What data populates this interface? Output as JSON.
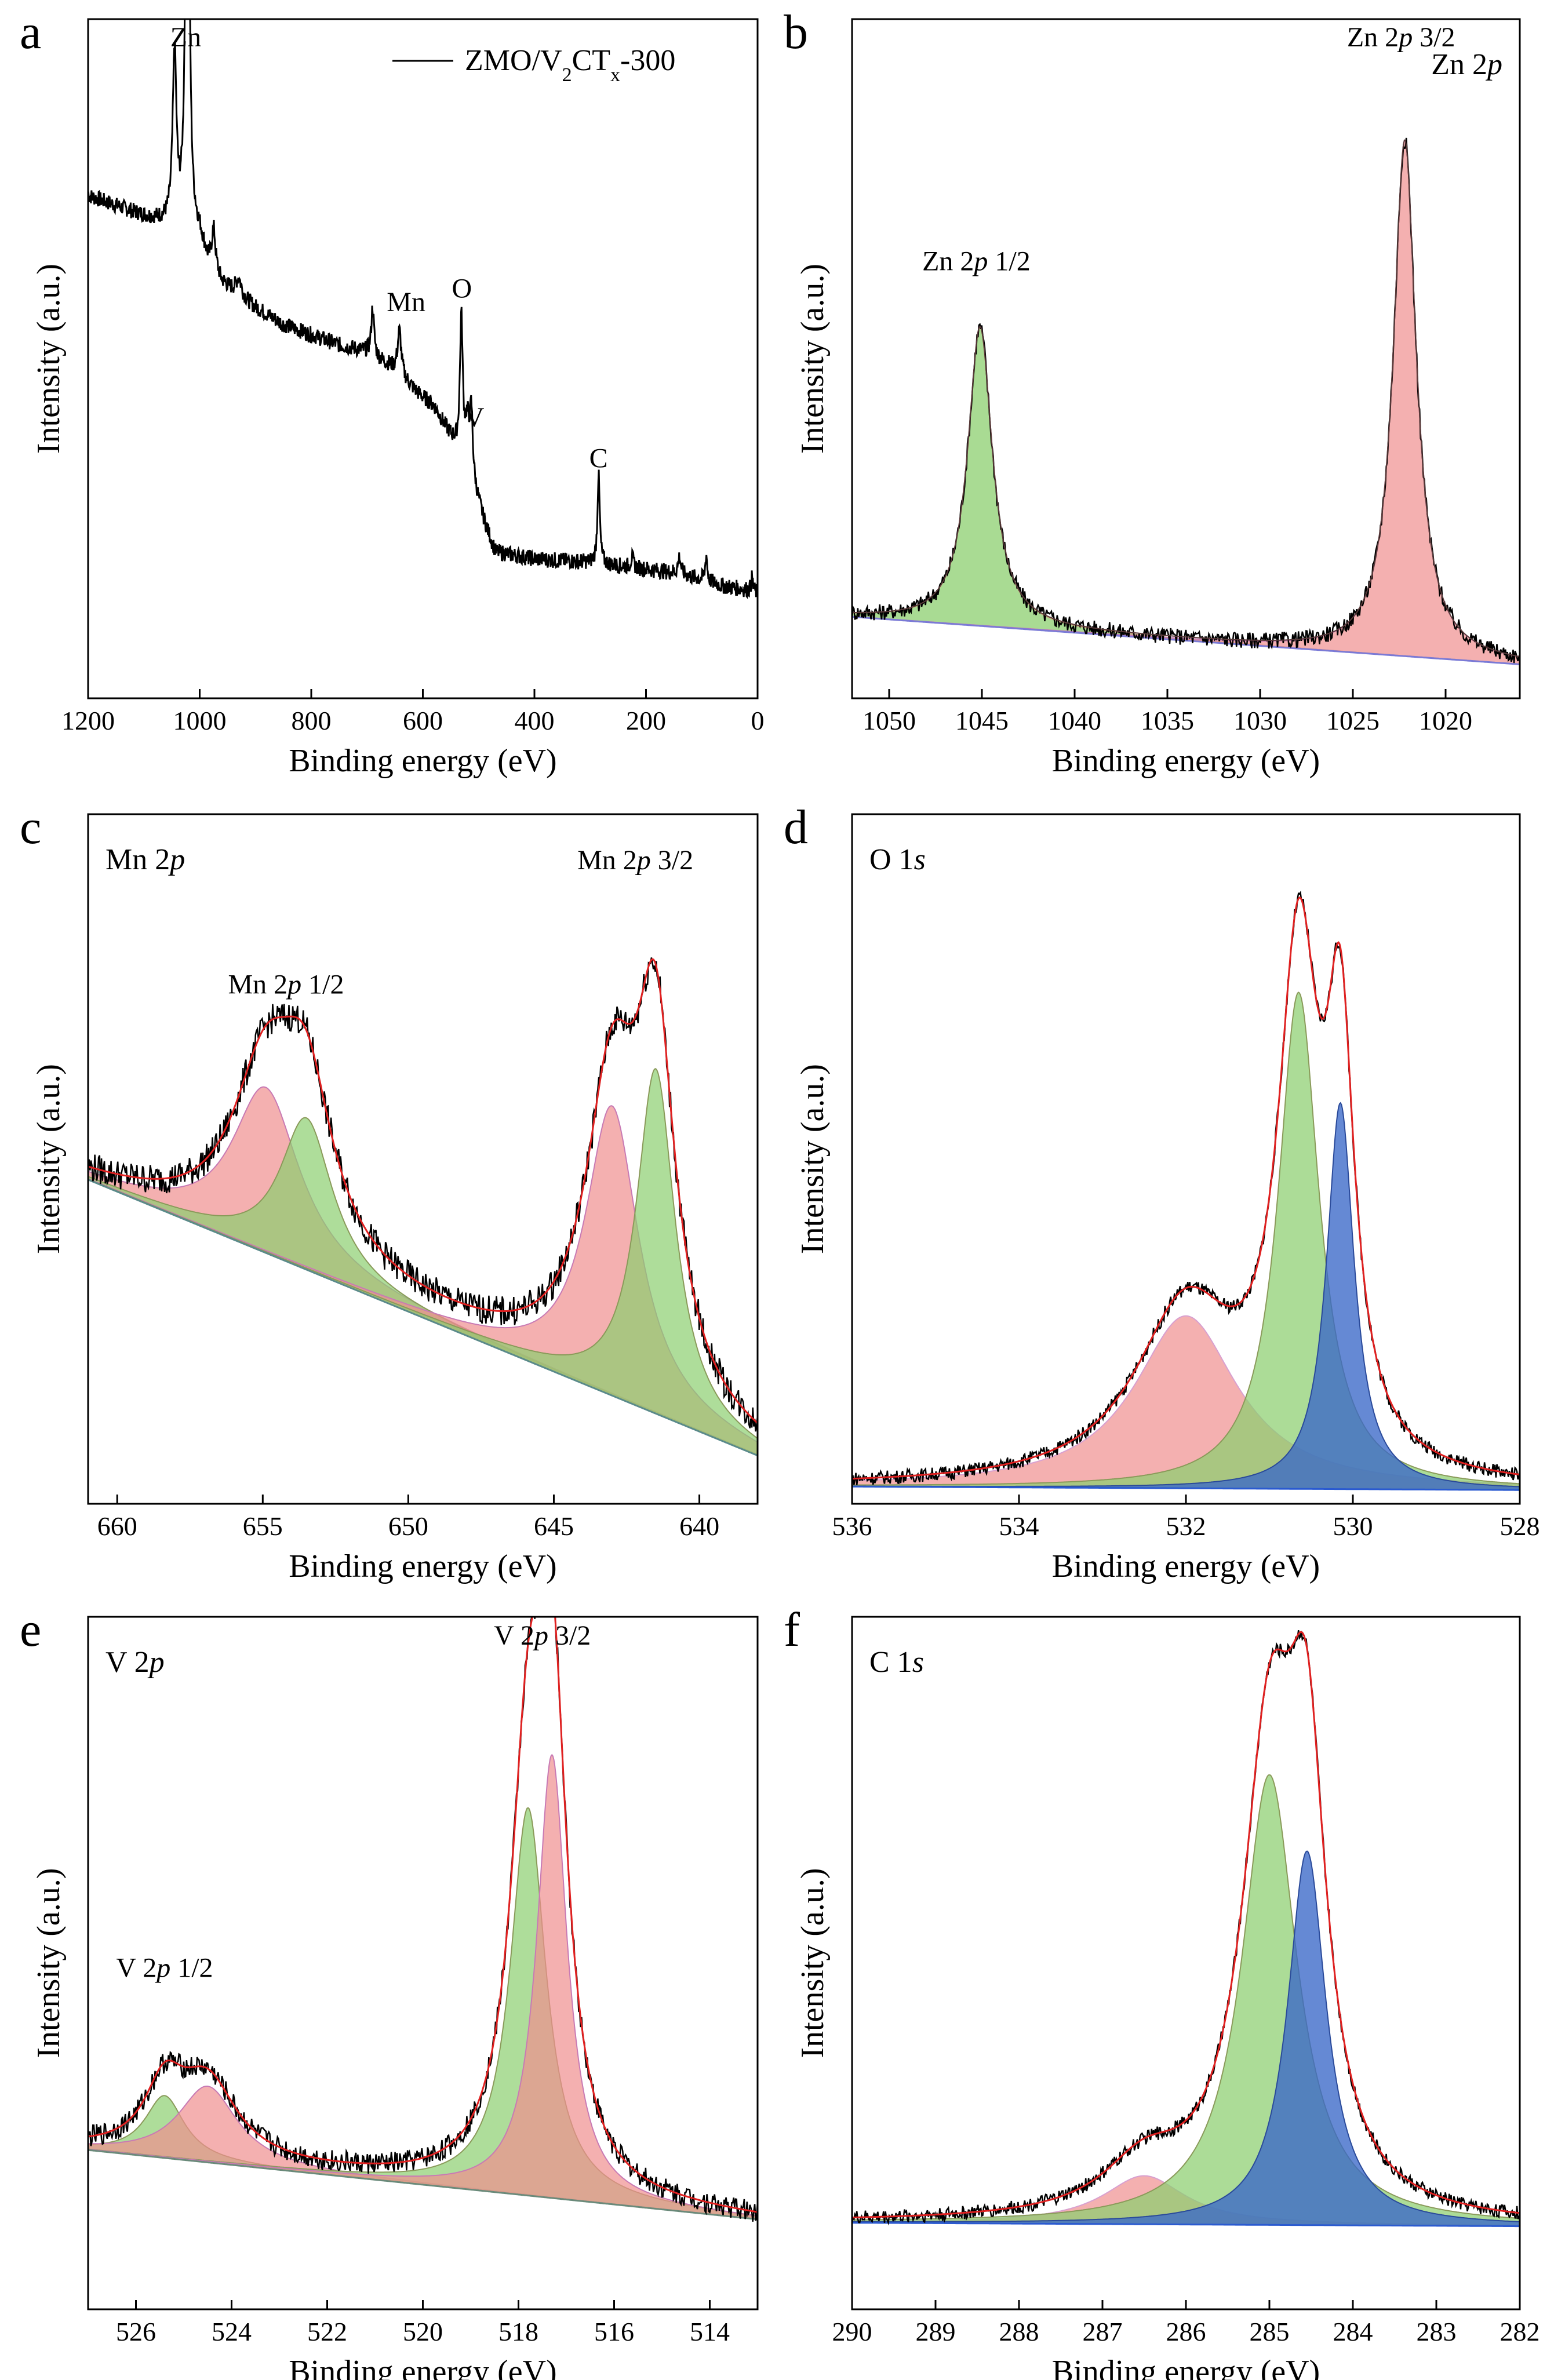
{
  "figure": {
    "panel_count": 6
  },
  "chart_data": [
    {
      "id": "a",
      "type": "line",
      "panel_label": "a",
      "title": "",
      "xlabel": "Binding energy (eV)",
      "ylabel": "Intensity (a.u.)",
      "xlim": [
        1200,
        0
      ],
      "ylim": [
        0,
        100
      ],
      "ticks": [
        1200,
        1000,
        800,
        600,
        400,
        200,
        0
      ],
      "legend": {
        "label": "ZMO/V2CTx-300",
        "placement": "top-right"
      },
      "lines": [
        {
          "name": "ZMO/V2CTx-300",
          "color": "#000000",
          "width": 3,
          "noise": 1.2,
          "points": [
            [
              1200,
              74
            ],
            [
              1150,
              72.5
            ],
            [
              1100,
              71
            ],
            [
              1060,
              70
            ],
            [
              1040,
              69.5
            ],
            [
              1000,
              68
            ],
            [
              985,
              64
            ],
            [
              960,
              61
            ],
            [
              900,
              57.5
            ],
            [
              850,
              55
            ],
            [
              800,
              53.5
            ],
            [
              750,
              52
            ],
            [
              700,
              51
            ],
            [
              660,
              49
            ],
            [
              640,
              47.5
            ],
            [
              610,
              45
            ],
            [
              580,
              43
            ],
            [
              560,
              40
            ],
            [
              540,
              37
            ],
            [
              520,
              34
            ],
            [
              490,
              26
            ],
            [
              470,
              21.5
            ],
            [
              400,
              20.5
            ],
            [
              300,
              20
            ],
            [
              250,
              19.5
            ],
            [
              200,
              19
            ],
            [
              150,
              18.5
            ],
            [
              100,
              17.5
            ],
            [
              60,
              16.5
            ],
            [
              20,
              16
            ],
            [
              0,
              15.5
            ]
          ],
          "peaks": [
            [
              1045,
              25,
              4
            ],
            [
              1022,
              88,
              3.5
            ],
            [
              975,
              6,
              4
            ],
            [
              930,
              2.5,
              6
            ],
            [
              690,
              7,
              3
            ],
            [
              642,
              6.5,
              4
            ],
            [
              531,
              20,
              3
            ],
            [
              520,
              6,
              5
            ],
            [
              513,
              9,
              3
            ],
            [
              285,
              13,
              2.5
            ],
            [
              225,
              1.5,
              3
            ],
            [
              140,
              2.5,
              3
            ],
            [
              92,
              4,
              2
            ],
            [
              10,
              2,
              2
            ]
          ]
        }
      ],
      "annotations": [
        {
          "text": "Zn",
          "x": 1025,
          "y": 96
        },
        {
          "text": "Mn",
          "x": 630,
          "y": 57
        },
        {
          "text": "O",
          "x": 530,
          "y": 59
        },
        {
          "text": "V",
          "x": 508,
          "y": 40
        },
        {
          "text": "C",
          "x": 285,
          "y": 34
        }
      ]
    },
    {
      "id": "b",
      "type": "line",
      "panel_label": "b",
      "title": "Zn 2p",
      "xlabel": "Binding energy (eV)",
      "ylabel": "Intensity (a.u.)",
      "xlim": [
        1052,
        1016
      ],
      "ylim": [
        0,
        100
      ],
      "ticks": [
        1050,
        1045,
        1040,
        1035,
        1030,
        1025,
        1020
      ],
      "peaks_fill": [
        {
          "name": "Zn 2p 1/2",
          "center": 1045.1,
          "height": 44,
          "width": 0.8,
          "fill": "#8ccf6f",
          "opacity": 0.75,
          "edge": "#c8a27a"
        },
        {
          "name": "Zn 2p 3/2",
          "center": 1022.2,
          "height": 76,
          "width": 0.75,
          "fill": "#ef8f8f",
          "opacity": 0.7,
          "edge": "#c87ab4"
        }
      ],
      "baseline": {
        "color": "#7a7ad6",
        "start": 12,
        "end": 5
      },
      "fit": {
        "color": "#5a3a3a",
        "width": 2
      },
      "data_line": {
        "color": "#000000",
        "width": 2.5,
        "noise": 1.2
      },
      "annotations": [
        {
          "text": "Zn 2p 1/2",
          "x": 1045.3,
          "y": 63
        },
        {
          "text": "Zn 2p 3/2",
          "x": 1022.4,
          "y": 96
        }
      ]
    },
    {
      "id": "c",
      "type": "line",
      "panel_label": "c",
      "title": "Mn 2p",
      "xlabel": "Binding energy (eV)",
      "ylabel": "Intensity (a.u.)",
      "xlim": [
        661,
        638
      ],
      "ylim": [
        0,
        100
      ],
      "ticks": [
        660,
        655,
        650,
        645,
        640
      ],
      "peaks_fill": [
        {
          "name": "Mn 2p 1/2 a",
          "center": 654.9,
          "height": 24,
          "width": 1.4,
          "fill": "#ef8f8f",
          "opacity": 0.7,
          "edge": "#c87ab4"
        },
        {
          "name": "Mn 2p 1/2 b",
          "center": 653.5,
          "height": 22,
          "width": 1.1,
          "fill": "#8ccf6f",
          "opacity": 0.7,
          "edge": "#8a9a5a"
        },
        {
          "name": "Mn 2p 3/2 a",
          "center": 643.0,
          "height": 42,
          "width": 1.1,
          "fill": "#ef8f8f",
          "opacity": 0.7,
          "edge": "#c87ab4"
        },
        {
          "name": "Mn 2p 3/2 b",
          "center": 641.5,
          "height": 50,
          "width": 0.8,
          "fill": "#8ccf6f",
          "opacity": 0.7,
          "edge": "#8a9a5a"
        }
      ],
      "baseline": {
        "color": "#5a8a8a",
        "start": 47,
        "end": 7
      },
      "fit": {
        "color": "#e02020",
        "width": 3
      },
      "data_line": {
        "color": "#000000",
        "width": 2.5,
        "noise": 2.2
      },
      "annotations": [
        {
          "text": "Mn 2p 1/2",
          "x": 654.2,
          "y": 74
        },
        {
          "text": "Mn 2p 3/2",
          "x": 642.2,
          "y": 92
        }
      ]
    },
    {
      "id": "d",
      "type": "line",
      "panel_label": "d",
      "title": "O 1s",
      "xlabel": "Binding energy (eV)",
      "ylabel": "Intensity (a.u.)",
      "xlim": [
        536,
        528
      ],
      "ylim": [
        0,
        100
      ],
      "ticks": [
        536,
        534,
        532,
        530,
        528
      ],
      "peaks_fill": [
        {
          "name": "O 1s a",
          "center": 532.0,
          "height": 25,
          "width": 0.75,
          "fill": "#ef8f8f",
          "opacity": 0.7,
          "edge": "#d8a0d0"
        },
        {
          "name": "O 1s b",
          "center": 530.65,
          "height": 72,
          "width": 0.3,
          "fill": "#8ccf6f",
          "opacity": 0.72,
          "edge": "#8a9a5a"
        },
        {
          "name": "O 1s c",
          "center": 530.15,
          "height": 56,
          "width": 0.2,
          "fill": "#3a68c8",
          "opacity": 0.78,
          "edge": "#2a4a9a"
        }
      ],
      "baseline": {
        "color": "#2a5ad0",
        "start": 2.5,
        "end": 2
      },
      "fit": {
        "color": "#e02020",
        "width": 3
      },
      "data_line": {
        "color": "#000000",
        "width": 2.5,
        "noise": 1.0
      },
      "annotations": []
    },
    {
      "id": "e",
      "type": "line",
      "panel_label": "e",
      "title": "V 2p",
      "xlabel": "Binding energy (eV)",
      "ylabel": "Intensity (a.u.)",
      "xlim": [
        527,
        513
      ],
      "ylim": [
        0,
        100
      ],
      "ticks": [
        526,
        524,
        522,
        520,
        518,
        516,
        514
      ],
      "peaks_fill": [
        {
          "name": "V 2p 1/2 a",
          "center": 525.4,
          "height": 9,
          "width": 0.5,
          "fill": "#8ccf6f",
          "opacity": 0.7,
          "edge": "#8a9a5a"
        },
        {
          "name": "V 2p 1/2 b",
          "center": 524.5,
          "height": 11,
          "width": 0.75,
          "fill": "#ef8f8f",
          "opacity": 0.7,
          "edge": "#c87ab4"
        },
        {
          "name": "V 2p 3/2 a",
          "center": 517.8,
          "height": 56,
          "width": 0.45,
          "fill": "#8ccf6f",
          "opacity": 0.7,
          "edge": "#8a9a5a"
        },
        {
          "name": "V 2p 3/2 b",
          "center": 517.3,
          "height": 64,
          "width": 0.38,
          "fill": "#ef8f8f",
          "opacity": 0.7,
          "edge": "#c87ab4"
        }
      ],
      "baseline": {
        "color": "#6a8a7a",
        "start": 23,
        "end": 13
      },
      "fit": {
        "color": "#e02020",
        "width": 3
      },
      "data_line": {
        "color": "#000000",
        "width": 2.5,
        "noise": 1.6
      },
      "annotations": [
        {
          "text": "V 2p 1/2",
          "x": 525.4,
          "y": 48
        },
        {
          "text": "V 2p 3/2",
          "x": 517.5,
          "y": 96
        }
      ]
    },
    {
      "id": "f",
      "type": "line",
      "panel_label": "f",
      "title": "C 1s",
      "xlabel": "Binding energy (eV)",
      "ylabel": "Intensity (a.u.)",
      "xlim": [
        290,
        282
      ],
      "ylim": [
        0,
        100
      ],
      "ticks": [
        290,
        289,
        288,
        287,
        286,
        285,
        284,
        283,
        282
      ],
      "peaks_fill": [
        {
          "name": "C 1s a",
          "center": 286.5,
          "height": 7,
          "width": 0.6,
          "fill": "#ef8f8f",
          "opacity": 0.7,
          "edge": "#d8a0d0"
        },
        {
          "name": "C 1s b",
          "center": 285.0,
          "height": 65,
          "width": 0.4,
          "fill": "#8ccf6f",
          "opacity": 0.72,
          "edge": "#8a9a5a"
        },
        {
          "name": "C 1s c",
          "center": 284.55,
          "height": 54,
          "width": 0.28,
          "fill": "#3a68c8",
          "opacity": 0.78,
          "edge": "#2a4a9a"
        }
      ],
      "baseline": {
        "color": "#2a5ad0",
        "start": 12.5,
        "end": 12
      },
      "fit": {
        "color": "#e02020",
        "width": 3
      },
      "data_line": {
        "color": "#000000",
        "width": 2.5,
        "noise": 1.0
      },
      "annotations": []
    }
  ]
}
